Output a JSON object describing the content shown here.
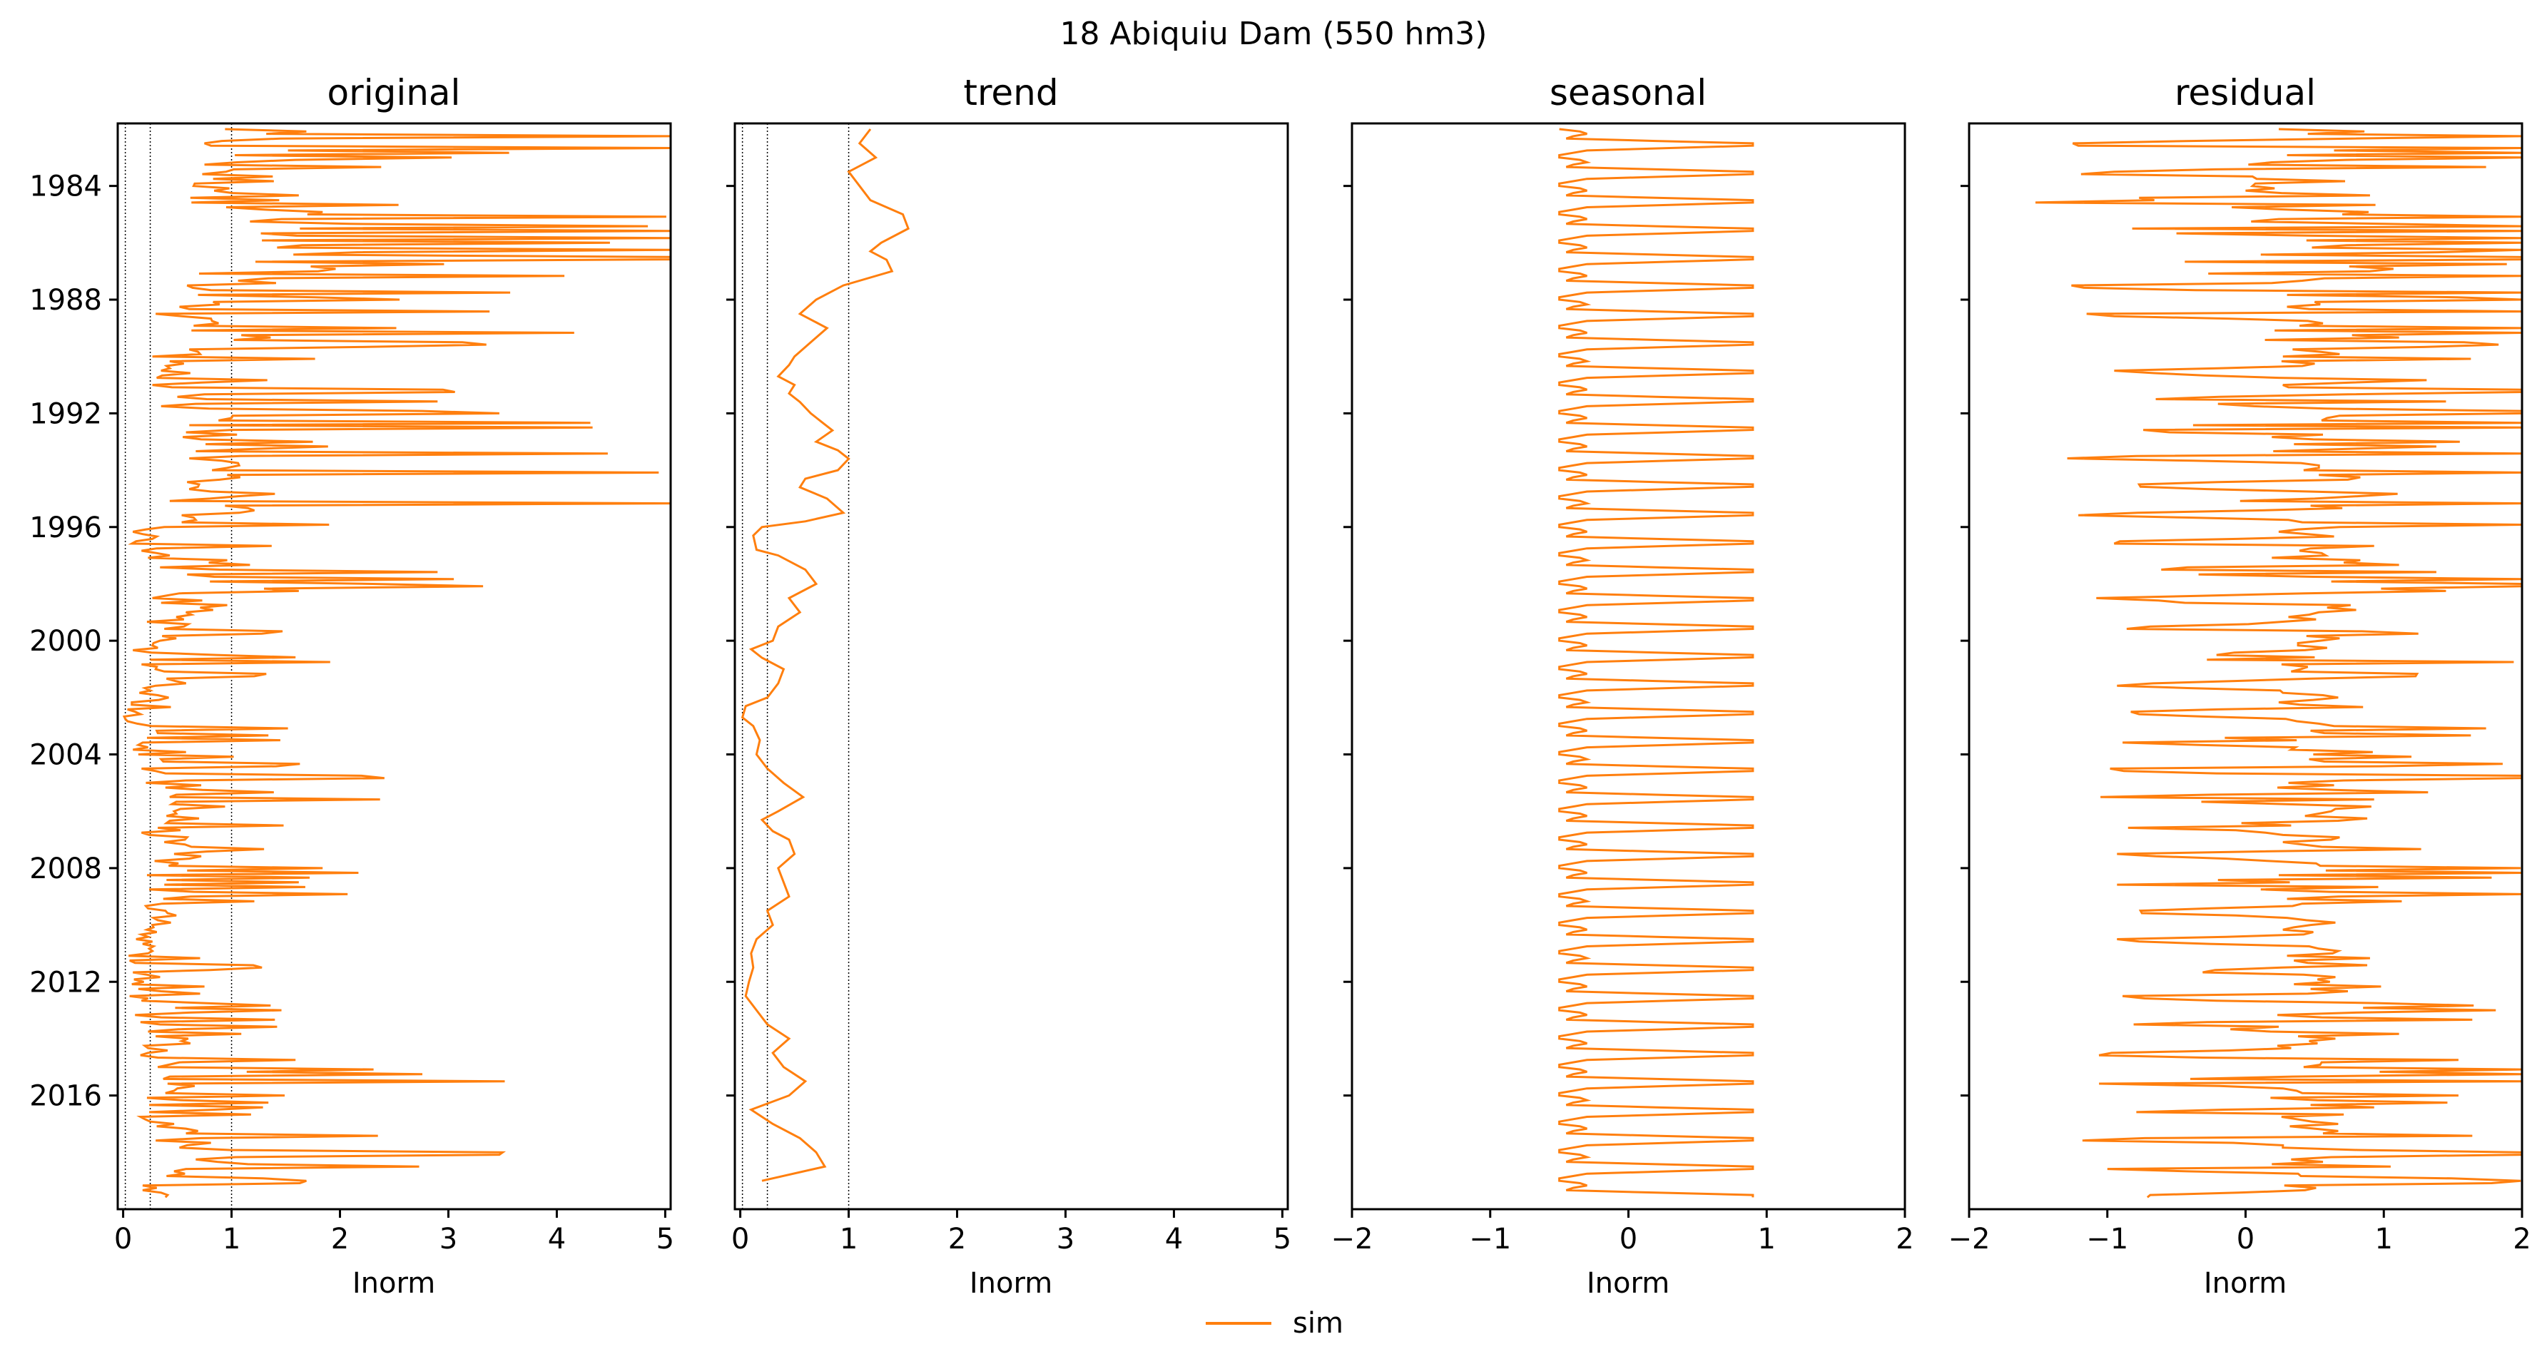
{
  "figure": {
    "suptitle": "18  Abiquiu Dam (550 hm3)"
  },
  "legend": {
    "label": "sim",
    "color": "#ff7f0e",
    "placement": "bottom-center"
  },
  "chart_data": [
    {
      "type": "line",
      "title": "original",
      "xlabel": "Inorm",
      "xlim": [
        -0.05,
        5.05
      ],
      "xticks": [
        "0",
        "1",
        "2",
        "3",
        "4",
        "5"
      ],
      "ylim": [
        1981.8,
        2020.0
      ],
      "yticks": [
        "1984",
        "1988",
        "1992",
        "1996",
        "2000",
        "2004",
        "2008",
        "2012",
        "2016"
      ],
      "reference_lines_x": [
        0.02,
        0.25,
        1.0
      ],
      "series": [
        {
          "name": "sim",
          "color": "#ff7f0e",
          "x": [],
          "y": []
        }
      ]
    },
    {
      "type": "line",
      "title": "trend",
      "xlabel": "Inorm",
      "xlim": [
        -0.05,
        5.05
      ],
      "xticks": [
        "0",
        "1",
        "2",
        "3",
        "4",
        "5"
      ],
      "ylim": [
        1981.8,
        2020.0
      ],
      "reference_lines_x": [
        0.02,
        0.25,
        1.0
      ],
      "series": [
        {
          "name": "sim",
          "color": "#ff7f0e",
          "x": [
            1.2,
            1.1,
            1.25,
            1.0,
            1.1,
            1.2,
            1.5,
            1.55,
            1.3,
            1.2,
            1.35,
            1.4,
            0.95,
            0.7,
            0.55,
            0.8,
            0.65,
            0.5,
            0.45,
            0.35,
            0.5,
            0.45,
            0.55,
            0.65,
            0.75,
            0.85,
            0.7,
            0.9,
            1.0,
            0.9,
            0.6,
            0.55,
            0.8,
            0.95,
            0.6,
            0.2,
            0.12,
            0.15,
            0.35,
            0.6,
            0.7,
            0.45,
            0.55,
            0.35,
            0.3,
            0.1,
            0.2,
            0.4,
            0.35,
            0.25,
            0.05,
            0.02,
            0.12,
            0.18,
            0.15,
            0.25,
            0.4,
            0.58,
            0.35,
            0.2,
            0.3,
            0.45,
            0.5,
            0.35,
            0.4,
            0.45,
            0.25,
            0.3,
            0.15,
            0.1,
            0.12,
            0.08,
            0.05,
            0.15,
            0.25,
            0.45,
            0.3,
            0.4,
            0.6,
            0.45,
            0.1,
            0.3,
            0.55,
            0.7,
            0.78,
            0.2
          ],
          "y": [
            1982.0,
            1982.5,
            1983.0,
            1983.5,
            1984.0,
            1984.5,
            1985.0,
            1985.5,
            1986.0,
            1986.3,
            1986.6,
            1987.0,
            1987.5,
            1988.0,
            1988.5,
            1989.0,
            1989.5,
            1990.0,
            1990.3,
            1990.7,
            1991.0,
            1991.3,
            1991.6,
            1992.0,
            1992.3,
            1992.6,
            1993.0,
            1993.3,
            1993.6,
            1994.0,
            1994.3,
            1994.6,
            1995.0,
            1995.5,
            1995.8,
            1996.0,
            1996.3,
            1996.8,
            1997.0,
            1997.5,
            1998.0,
            1998.5,
            1999.0,
            1999.5,
            2000.0,
            2000.3,
            2000.6,
            2001.0,
            2001.5,
            2002.0,
            2002.3,
            2002.7,
            2003.0,
            2003.5,
            2004.0,
            2004.5,
            2005.0,
            2005.5,
            2006.0,
            2006.3,
            2006.7,
            2007.0,
            2007.5,
            2008.0,
            2008.5,
            2009.0,
            2009.5,
            2010.0,
            2010.5,
            2011.0,
            2011.5,
            2012.0,
            2012.5,
            2013.0,
            2013.5,
            2014.0,
            2014.5,
            2015.0,
            2015.5,
            2016.0,
            2016.5,
            2017.0,
            2017.5,
            2018.0,
            2018.5,
            2019.0
          ]
        }
      ]
    },
    {
      "type": "line",
      "title": "seasonal",
      "xlabel": "Inorm",
      "xlim": [
        -2,
        2
      ],
      "xticks": [
        "−2",
        "−1",
        "0",
        "1",
        "2"
      ],
      "ylim": [
        1981.8,
        2020.0
      ],
      "series": [
        {
          "name": "sim",
          "color": "#ff7f0e",
          "pattern": "annual",
          "values": [
            -0.5,
            -0.35,
            -0.3,
            -0.4,
            -0.45,
            0.2,
            0.9,
            0.9,
            0.3,
            -0.3,
            -0.4,
            -0.5
          ]
        }
      ]
    },
    {
      "type": "line",
      "title": "residual",
      "xlabel": "Inorm",
      "xlim": [
        -2,
        2
      ],
      "xticks": [
        "−2",
        "−1",
        "0",
        "1",
        "2"
      ],
      "ylim": [
        1981.8,
        2020.0
      ],
      "series": [
        {
          "name": "sim",
          "color": "#ff7f0e",
          "x": [],
          "y": []
        }
      ]
    }
  ]
}
